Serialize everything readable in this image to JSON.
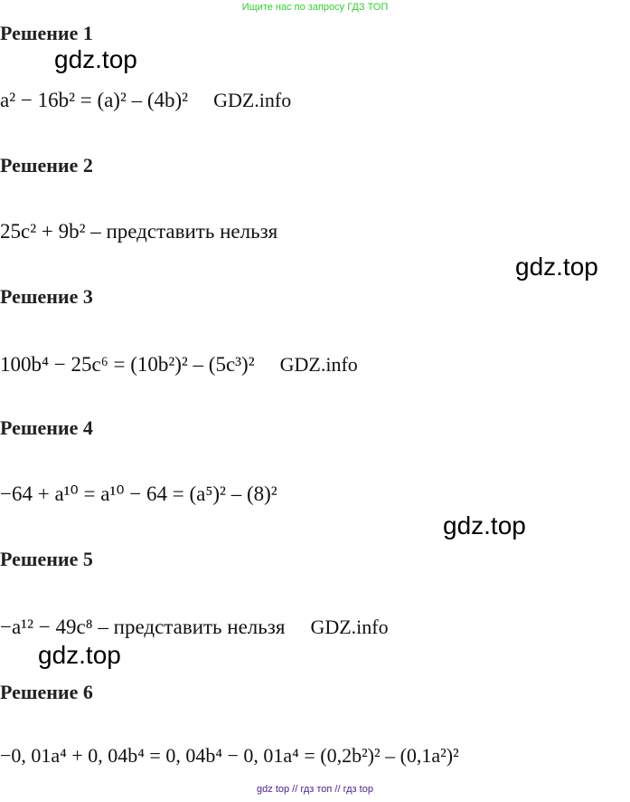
{
  "top_note": "Ищите нас по запросу ГДЗ ТОП",
  "solutions": [
    {
      "heading": "Решение 1",
      "formula": "a² − 16b² = (a)² – (4b)²",
      "watermark": "GDZ.info"
    },
    {
      "heading": "Решение 2",
      "formula": "25c² + 9b² – представить нельзя",
      "watermark": ""
    },
    {
      "heading": "Решение 3",
      "formula": "100b⁴ − 25c⁶ = (10b²)² – (5c³)²",
      "watermark": "GDZ.info"
    },
    {
      "heading": "Решение 4",
      "formula": "−64 + a¹⁰ = a¹⁰ − 64 = (a⁵)² – (8)²",
      "watermark": ""
    },
    {
      "heading": "Решение 5",
      "formula": "−a¹² − 49c⁸ – представить нельзя",
      "watermark": "GDZ.info"
    },
    {
      "heading": "Решение 6",
      "formula": "−0, 01a⁴ + 0, 04b⁴ = 0, 04b⁴ − 0, 01a⁴ = (0,2b²)² – (0,1a²)²",
      "watermark": ""
    }
  ],
  "watermarks": [
    "gdz.top",
    "gdz.top",
    "gdz.top",
    "gdz.top"
  ],
  "footer": "gdz top  //  гдз топ  //  гдз top"
}
